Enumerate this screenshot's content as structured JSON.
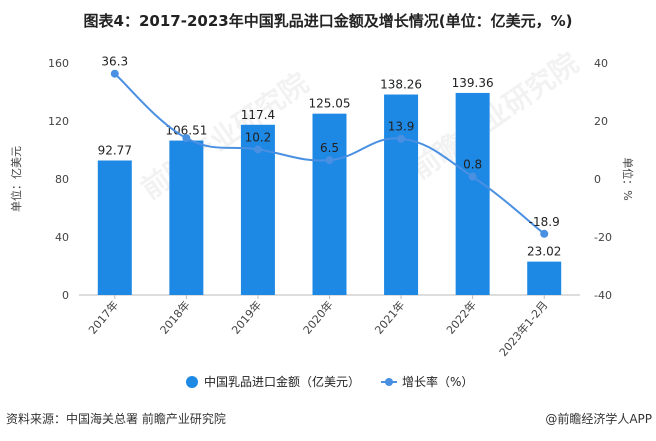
{
  "title": "图表4：2017-2023年中国乳品进口金额及增长情况(单位：亿美元，%)",
  "source": "资料来源：中国海关总署 前瞻产业研究院",
  "brand": "@前瞻经济学人APP",
  "watermark": "前瞻产业研究院",
  "chart_data": {
    "type": "bar+line",
    "categories": [
      "2017年",
      "2018年",
      "2019年",
      "2020年",
      "2021年",
      "2022年",
      "2023年1-2月"
    ],
    "series": [
      {
        "name": "中国乳品进口金额（亿美元）",
        "type": "bar",
        "axis": "left",
        "color": "#1e88e5",
        "values": [
          92.77,
          106.51,
          117.4,
          125.05,
          138.26,
          139.36,
          23.02
        ],
        "labels": [
          "92.77",
          "106.51",
          "117.4",
          "125.05",
          "138.26",
          "139.36",
          "23.02"
        ]
      },
      {
        "name": "增长率（%）",
        "type": "line",
        "axis": "right",
        "color": "#4a90e2",
        "values": [
          36.3,
          14.1,
          10.2,
          6.5,
          13.9,
          0.8,
          -18.9
        ],
        "labels": [
          "36.3",
          "",
          "10.2",
          "6.5",
          "13.9",
          "0.8",
          "-18.9"
        ]
      }
    ],
    "ylabel_left": "单位：亿美元",
    "ylabel_right": "单位：%",
    "ylim_left": [
      0,
      160
    ],
    "yticks_left": [
      "0",
      "40",
      "80",
      "120",
      "160"
    ],
    "ylim_right": [
      -40,
      40
    ],
    "yticks_right": [
      "-40",
      "-20",
      "0",
      "20",
      "40"
    ],
    "grid": false,
    "legend": "bottom"
  }
}
